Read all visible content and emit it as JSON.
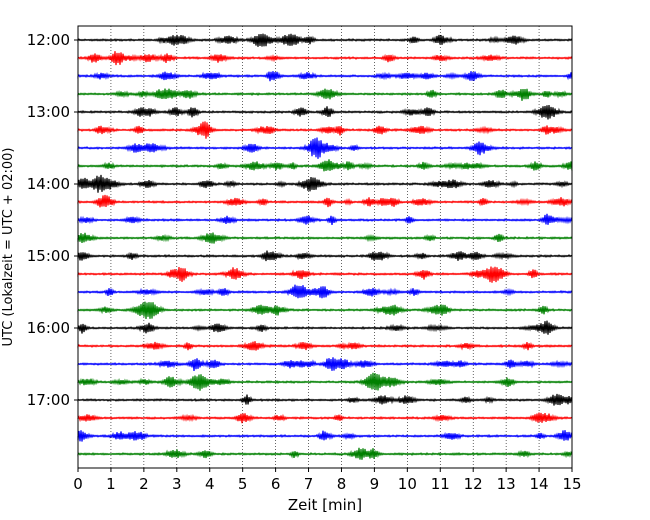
{
  "chart_data": {
    "type": "line",
    "title": "",
    "xlabel": "Zeit  [min]",
    "ylabel": "UTC (Lokalzeit = UTC + 02:00)",
    "xlim": [
      0,
      15
    ],
    "x_ticks": [
      "0",
      "1",
      "2",
      "3",
      "4",
      "5",
      "6",
      "7",
      "8",
      "9",
      "10",
      "11",
      "12",
      "13",
      "14",
      "15"
    ],
    "y_tick_labels": [
      "12:00",
      "13:00",
      "14:00",
      "15:00",
      "16:00",
      "17:00"
    ],
    "row_interval_min": 15,
    "row_count": 24,
    "grid": "vertical dotted at each minute",
    "colors": [
      "#000000",
      "#ff0000",
      "#0000ff",
      "#008000"
    ],
    "notable_events": [
      {
        "row_time": "15:15",
        "minute": 12.65,
        "note": "large burst"
      },
      {
        "row_time": "16:45",
        "minute": 3.7,
        "note": "burst"
      },
      {
        "row_time": "16:45",
        "minute": 9.0,
        "note": "burst"
      }
    ]
  }
}
